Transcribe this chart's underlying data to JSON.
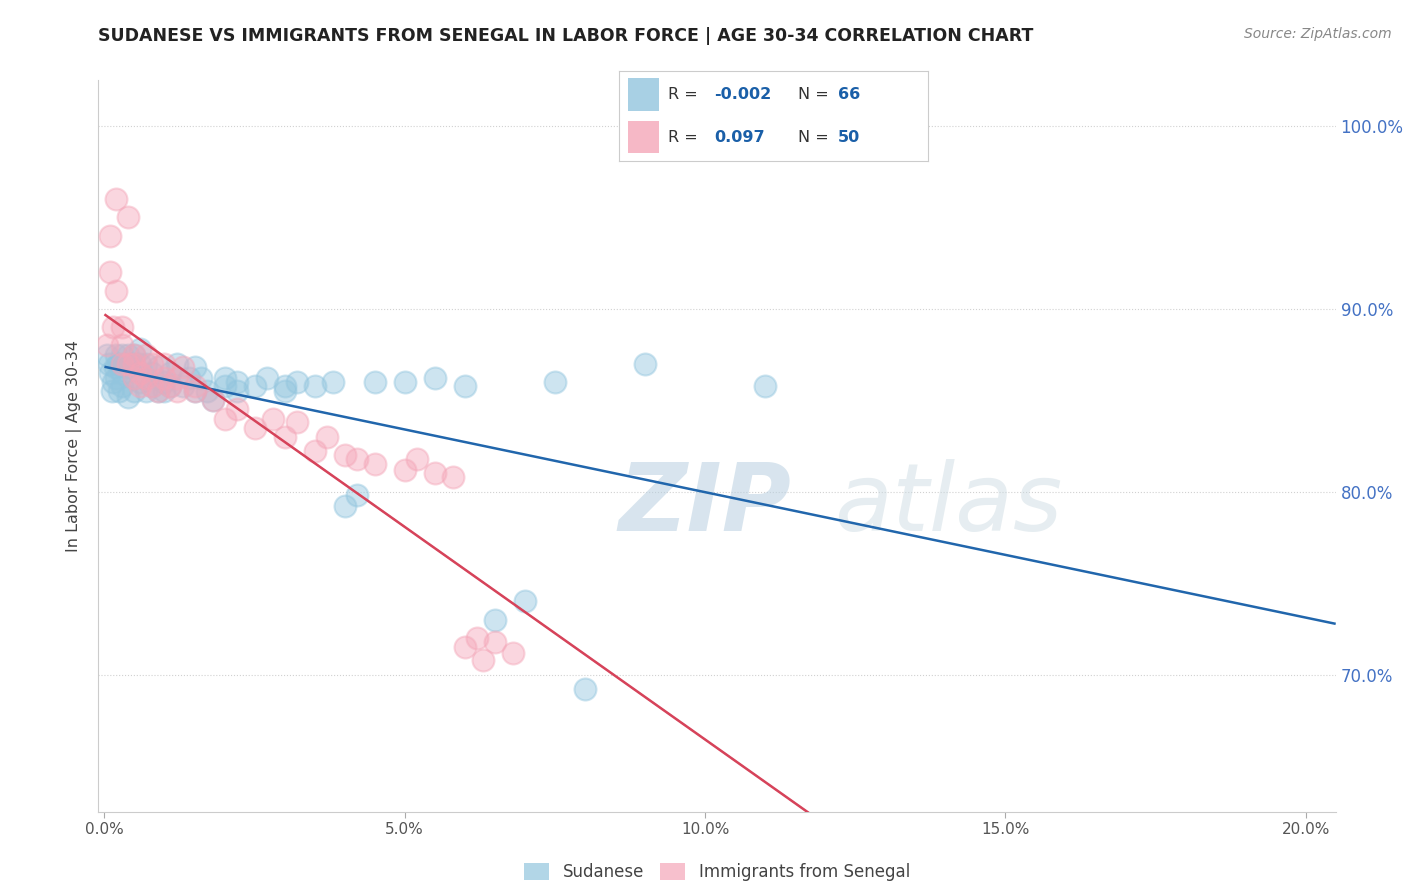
{
  "title": "SUDANESE VS IMMIGRANTS FROM SENEGAL IN LABOR FORCE | AGE 30-34 CORRELATION CHART",
  "source": "Source: ZipAtlas.com",
  "ylabel": "In Labor Force | Age 30-34",
  "xlim": [
    -0.001,
    0.205
  ],
  "ylim": [
    0.625,
    1.025
  ],
  "ytick_labels": [
    "70.0%",
    "80.0%",
    "90.0%",
    "100.0%"
  ],
  "ytick_vals": [
    0.7,
    0.8,
    0.9,
    1.0
  ],
  "xtick_labels": [
    "0.0%",
    "5.0%",
    "10.0%",
    "15.0%",
    "20.0%"
  ],
  "xtick_vals": [
    0.0,
    0.05,
    0.1,
    0.15,
    0.2
  ],
  "blue_color": "#92c5de",
  "pink_color": "#f4a6b8",
  "blue_line_color": "#2166ac",
  "pink_line_color": "#d6435a",
  "watermark_zip": "ZIP",
  "watermark_atlas": "atlas",
  "background_color": "#ffffff",
  "grid_color": "#cccccc",
  "sudan_R": "-0.002",
  "sudan_N": "66",
  "senegal_R": "0.097",
  "senegal_N": "50",
  "sudan_x": [
    0.0005,
    0.0008,
    0.001,
    0.0012,
    0.0015,
    0.0018,
    0.002,
    0.002,
    0.0022,
    0.0025,
    0.003,
    0.003,
    0.003,
    0.0035,
    0.004,
    0.004,
    0.004,
    0.005,
    0.005,
    0.005,
    0.005,
    0.006,
    0.006,
    0.006,
    0.007,
    0.007,
    0.007,
    0.008,
    0.008,
    0.009,
    0.009,
    0.01,
    0.01,
    0.011,
    0.011,
    0.012,
    0.013,
    0.014,
    0.015,
    0.015,
    0.016,
    0.017,
    0.018,
    0.02,
    0.02,
    0.022,
    0.022,
    0.025,
    0.027,
    0.03,
    0.03,
    0.032,
    0.035,
    0.038,
    0.04,
    0.042,
    0.045,
    0.05,
    0.055,
    0.06,
    0.065,
    0.07,
    0.075,
    0.08,
    0.09,
    0.11
  ],
  "sudan_y": [
    0.875,
    0.87,
    0.865,
    0.855,
    0.86,
    0.868,
    0.875,
    0.862,
    0.87,
    0.855,
    0.858,
    0.865,
    0.875,
    0.87,
    0.875,
    0.868,
    0.852,
    0.862,
    0.87,
    0.855,
    0.875,
    0.86,
    0.87,
    0.878,
    0.855,
    0.87,
    0.862,
    0.858,
    0.865,
    0.855,
    0.868,
    0.86,
    0.855,
    0.858,
    0.865,
    0.87,
    0.858,
    0.862,
    0.868,
    0.855,
    0.862,
    0.855,
    0.85,
    0.858,
    0.862,
    0.86,
    0.855,
    0.858,
    0.862,
    0.858,
    0.855,
    0.86,
    0.858,
    0.86,
    0.792,
    0.798,
    0.86,
    0.86,
    0.862,
    0.858,
    0.73,
    0.74,
    0.86,
    0.692,
    0.87,
    0.858
  ],
  "senegal_x": [
    0.0005,
    0.001,
    0.001,
    0.0015,
    0.002,
    0.002,
    0.003,
    0.003,
    0.003,
    0.004,
    0.004,
    0.005,
    0.005,
    0.005,
    0.006,
    0.006,
    0.007,
    0.007,
    0.008,
    0.008,
    0.009,
    0.01,
    0.01,
    0.011,
    0.012,
    0.012,
    0.013,
    0.015,
    0.015,
    0.018,
    0.02,
    0.022,
    0.025,
    0.028,
    0.03,
    0.032,
    0.035,
    0.037,
    0.04,
    0.042,
    0.045,
    0.05,
    0.052,
    0.055,
    0.058,
    0.06,
    0.062,
    0.063,
    0.065,
    0.068
  ],
  "senegal_y": [
    0.88,
    0.92,
    0.94,
    0.89,
    0.96,
    0.91,
    0.89,
    0.88,
    0.87,
    0.95,
    0.87,
    0.875,
    0.87,
    0.862,
    0.865,
    0.858,
    0.875,
    0.862,
    0.87,
    0.858,
    0.855,
    0.862,
    0.87,
    0.858,
    0.855,
    0.862,
    0.868,
    0.858,
    0.855,
    0.85,
    0.84,
    0.845,
    0.835,
    0.84,
    0.83,
    0.838,
    0.822,
    0.83,
    0.82,
    0.818,
    0.815,
    0.812,
    0.818,
    0.81,
    0.808,
    0.715,
    0.72,
    0.708,
    0.718,
    0.712
  ]
}
